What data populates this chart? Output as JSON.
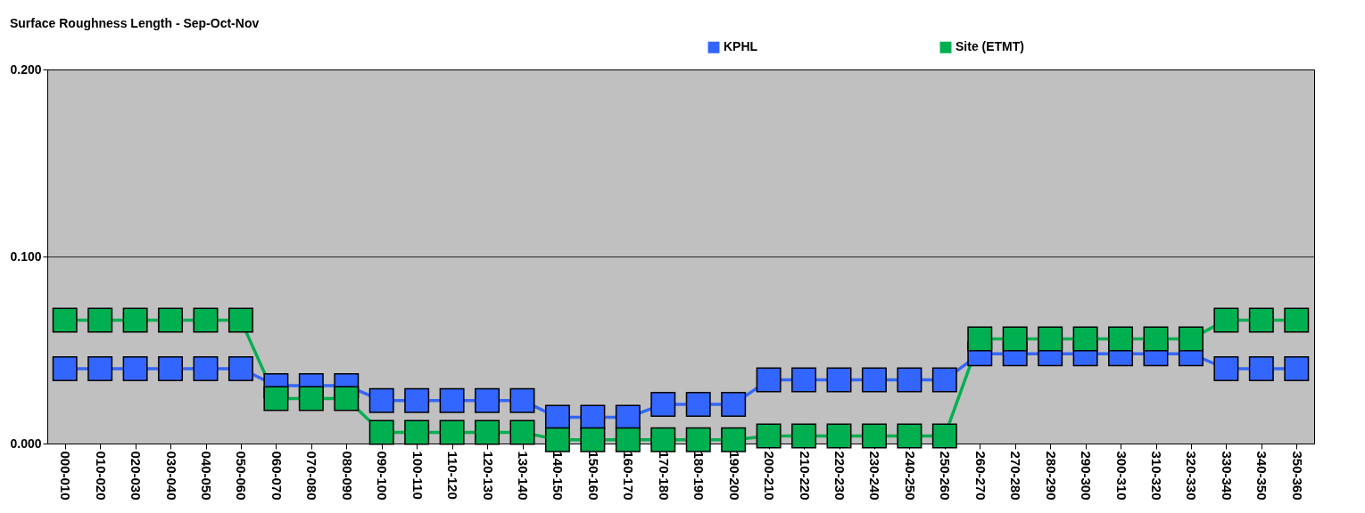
{
  "chart_data": {
    "type": "line",
    "title": "Surface Roughness Length - Sep-Oct-Nov",
    "categories": [
      "000-010",
      "010-020",
      "020-030",
      "030-040",
      "040-050",
      "050-060",
      "060-070",
      "070-080",
      "080-090",
      "090-100",
      "100-110",
      "110-120",
      "120-130",
      "130-140",
      "140-150",
      "150-160",
      "160-170",
      "170-180",
      "180-190",
      "190-200",
      "200-210",
      "210-220",
      "220-230",
      "230-240",
      "240-250",
      "250-260",
      "260-270",
      "270-280",
      "280-290",
      "290-300",
      "300-310",
      "310-320",
      "320-330",
      "330-340",
      "340-350",
      "350-360"
    ],
    "series": [
      {
        "name": "KPHL",
        "color": "#3366ff",
        "values": [
          0.04,
          0.04,
          0.04,
          0.04,
          0.04,
          0.04,
          0.031,
          0.031,
          0.031,
          0.023,
          0.023,
          0.023,
          0.023,
          0.023,
          0.014,
          0.014,
          0.014,
          0.021,
          0.021,
          0.021,
          0.034,
          0.034,
          0.034,
          0.034,
          0.034,
          0.034,
          0.048,
          0.048,
          0.048,
          0.048,
          0.048,
          0.048,
          0.048,
          0.04,
          0.04,
          0.04
        ]
      },
      {
        "name": "Site (ETMT)",
        "color": "#00b050",
        "values": [
          0.066,
          0.066,
          0.066,
          0.066,
          0.066,
          0.066,
          0.024,
          0.024,
          0.024,
          0.006,
          0.006,
          0.006,
          0.006,
          0.006,
          0.002,
          0.002,
          0.002,
          0.002,
          0.002,
          0.002,
          0.004,
          0.004,
          0.004,
          0.004,
          0.004,
          0.004,
          0.056,
          0.056,
          0.056,
          0.056,
          0.056,
          0.056,
          0.056,
          0.066,
          0.066,
          0.066
        ]
      }
    ],
    "ylim": [
      0,
      0.2
    ],
    "yticks": [
      {
        "value": 0,
        "label": "0.000"
      },
      {
        "value": 0.1,
        "label": "0.100"
      },
      {
        "value": 0.2,
        "label": "0.200"
      }
    ],
    "grid": "y",
    "legend": "top",
    "marker": "square"
  }
}
